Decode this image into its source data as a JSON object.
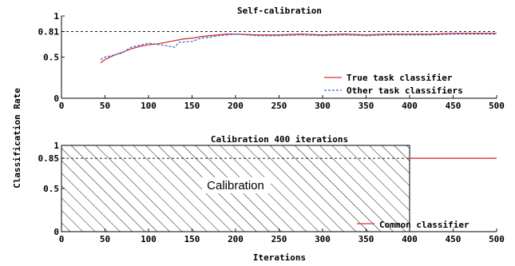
{
  "ylabel": "Classification Rate",
  "xlabel": "Iterations",
  "chart_data": [
    {
      "type": "line",
      "title": "Self-calibration",
      "xlim": [
        0,
        500
      ],
      "ylim": [
        0,
        1
      ],
      "xticks": [
        "0",
        "50",
        "100",
        "150",
        "200",
        "250",
        "300",
        "350",
        "400",
        "450",
        "500"
      ],
      "yticks": [
        "0",
        "0.5",
        "0.81",
        "1"
      ],
      "reference_line": {
        "y": 0.81,
        "style": "dashed",
        "color": "#000000"
      },
      "legend": {
        "placement": "lower-right"
      },
      "series": [
        {
          "name": "True task classifier",
          "color": "#e03030",
          "style": "solid",
          "x": [
            45,
            50,
            60,
            70,
            80,
            90,
            100,
            110,
            120,
            130,
            140,
            150,
            160,
            170,
            180,
            190,
            200,
            225,
            250,
            275,
            300,
            325,
            350,
            375,
            400,
            425,
            450,
            475,
            500
          ],
          "y": [
            0.43,
            0.47,
            0.52,
            0.56,
            0.6,
            0.63,
            0.65,
            0.66,
            0.68,
            0.7,
            0.72,
            0.73,
            0.75,
            0.76,
            0.77,
            0.78,
            0.78,
            0.77,
            0.77,
            0.78,
            0.77,
            0.78,
            0.77,
            0.78,
            0.78,
            0.78,
            0.79,
            0.79,
            0.79
          ]
        },
        {
          "name": "Other task classifiers",
          "color": "#3a6fd8",
          "style": "dashed",
          "x": [
            45,
            50,
            70,
            80,
            100,
            120,
            130,
            135,
            150,
            160,
            170,
            180,
            190,
            200,
            225,
            250,
            275,
            300,
            325,
            350,
            375,
            400,
            425,
            450,
            475,
            500
          ],
          "y": [
            0.47,
            0.5,
            0.55,
            0.62,
            0.67,
            0.64,
            0.62,
            0.68,
            0.69,
            0.73,
            0.74,
            0.76,
            0.77,
            0.78,
            0.76,
            0.76,
            0.77,
            0.76,
            0.77,
            0.76,
            0.77,
            0.77,
            0.77,
            0.78,
            0.78,
            0.78
          ]
        }
      ]
    },
    {
      "type": "line",
      "title": "Calibration 400 iterations",
      "xlim": [
        0,
        500
      ],
      "ylim": [
        0,
        1
      ],
      "xticks": [
        "0",
        "50",
        "100",
        "150",
        "200",
        "250",
        "300",
        "350",
        "400",
        "450",
        "500"
      ],
      "yticks": [
        "0",
        "0.5",
        "0.85",
        "1"
      ],
      "reference_line": {
        "y": 0.85,
        "style": "dashed",
        "color": "#000000"
      },
      "shaded_region": {
        "x": [
          0,
          400
        ],
        "y": [
          0,
          1
        ],
        "label": "Calibration",
        "pattern": "diagonal-hatch"
      },
      "legend": {
        "placement": "lower-right"
      },
      "series": [
        {
          "name": "Common classifier",
          "color": "#e03030",
          "style": "solid",
          "x": [
            400,
            500
          ],
          "y": [
            0.85,
            0.85
          ]
        }
      ]
    }
  ]
}
